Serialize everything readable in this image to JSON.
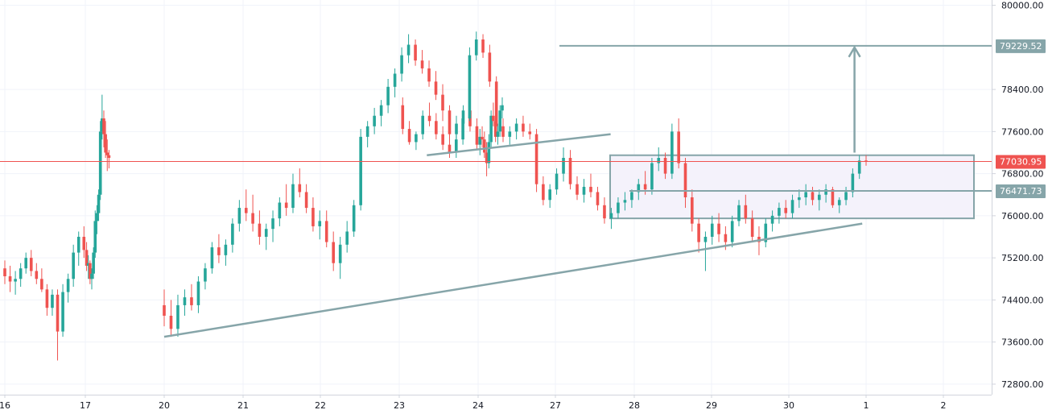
{
  "chart_data": {
    "type": "candlestick",
    "y_range": [
      72600,
      80100
    ],
    "x_labels": [
      "16",
      "17",
      "20",
      "21",
      "22",
      "23",
      "24",
      "27",
      "28",
      "29",
      "30",
      "1",
      "2"
    ],
    "y_ticks": [
      "80000.00",
      "78400.00",
      "77600.00",
      "76800.00",
      "76000.00",
      "75200.00",
      "74400.00",
      "73600.00",
      "72800.00"
    ],
    "y_tick_values": [
      80000,
      78400,
      77600,
      76800,
      76000,
      75200,
      74400,
      73600,
      72800
    ],
    "grid": true,
    "colors": {
      "up": "#26a69a",
      "down": "#ef5350",
      "current_price": "#ef5350",
      "drawing": "#86a5a9",
      "box_fill": "#f4f2fb",
      "grid": "#f0f3fa",
      "axis_text": "#131722"
    },
    "current_price": {
      "value": 77030.95,
      "label": "77030.95"
    },
    "price_levels": [
      {
        "value": 79229.52,
        "label": "79229.52"
      },
      {
        "value": 76471.73,
        "label": "76471.73"
      }
    ],
    "range_box": {
      "top": 77150,
      "bottom": 75950
    },
    "candles": [
      [
        75000,
        75150,
        74700,
        74850
      ],
      [
        74850,
        75050,
        74550,
        74750
      ],
      [
        74750,
        74950,
        74500,
        74800
      ],
      [
        74800,
        75100,
        74650,
        75000
      ],
      [
        75000,
        75300,
        74900,
        75200
      ],
      [
        75200,
        75350,
        74850,
        74950
      ],
      [
        74950,
        75100,
        74700,
        74800
      ],
      [
        74800,
        75000,
        74550,
        74600
      ],
      [
        74600,
        74700,
        74100,
        74250
      ],
      [
        74250,
        74600,
        74100,
        74500
      ],
      [
        74500,
        74600,
        73250,
        73800
      ],
      [
        73800,
        74700,
        73700,
        74550
      ],
      [
        74550,
        74900,
        74350,
        74800
      ],
      [
        74800,
        75450,
        74650,
        75300
      ],
      [
        75300,
        75700,
        75050,
        75600
      ],
      [
        75600,
        75800,
        75200,
        75350
      ],
      [
        75350,
        75500,
        74950,
        75050
      ],
      [
        75050,
        75250,
        74800,
        75100
      ],
      [
        75100,
        75150,
        74700,
        74800
      ],
      [
        74800,
        75000,
        74600,
        74900
      ],
      [
        74900,
        75400,
        74800,
        75300
      ],
      [
        75300,
        76100,
        75200,
        75900
      ],
      [
        75900,
        76200,
        75650,
        76050
      ],
      [
        76050,
        76500,
        75900,
        76400
      ],
      [
        76400,
        77800,
        76300,
        77600
      ],
      [
        77600,
        78300,
        77450,
        77850
      ],
      [
        77850,
        78000,
        77300,
        77550
      ],
      [
        77550,
        77800,
        77100,
        77200
      ],
      [
        77200,
        77450,
        76850,
        77150
      ],
      [
        77150,
        77250,
        76900,
        77100
      ],
      [
        74300,
        74600,
        73900,
        74100
      ],
      [
        74100,
        74400,
        73700,
        73850
      ],
      [
        73850,
        74500,
        73700,
        74300
      ],
      [
        74300,
        74600,
        74100,
        74450
      ],
      [
        74450,
        74700,
        74200,
        74300
      ],
      [
        74300,
        74850,
        74150,
        74750
      ],
      [
        74750,
        75100,
        74600,
        75000
      ],
      [
        75000,
        75500,
        74900,
        75400
      ],
      [
        75400,
        75650,
        75100,
        75250
      ],
      [
        75250,
        75550,
        75050,
        75450
      ],
      [
        75450,
        75950,
        75300,
        75850
      ],
      [
        75850,
        76300,
        75700,
        76150
      ],
      [
        76150,
        76500,
        75900,
        76050
      ],
      [
        76050,
        76400,
        75700,
        75850
      ],
      [
        75850,
        76100,
        75450,
        75600
      ],
      [
        75600,
        75850,
        75350,
        75750
      ],
      [
        75750,
        76100,
        75500,
        75950
      ],
      [
        75950,
        76350,
        75800,
        76250
      ],
      [
        76250,
        76600,
        76000,
        76150
      ],
      [
        76150,
        76800,
        76050,
        76600
      ],
      [
        76600,
        76900,
        76350,
        76450
      ],
      [
        76450,
        76600,
        76050,
        76150
      ],
      [
        76150,
        76350,
        75700,
        75800
      ],
      [
        75800,
        76100,
        75550,
        75900
      ],
      [
        75900,
        76100,
        75400,
        75500
      ],
      [
        75500,
        75700,
        74950,
        75100
      ],
      [
        75100,
        75600,
        74800,
        75450
      ],
      [
        75450,
        75900,
        75300,
        75700
      ],
      [
        75700,
        76300,
        75600,
        76200
      ],
      [
        76200,
        77650,
        76100,
        77500
      ],
      [
        77500,
        77800,
        77300,
        77700
      ],
      [
        77700,
        78050,
        77550,
        77900
      ],
      [
        77900,
        78200,
        77700,
        78100
      ],
      [
        78100,
        78600,
        77950,
        78450
      ],
      [
        78450,
        78800,
        78250,
        78700
      ],
      [
        78700,
        79200,
        78550,
        79050
      ],
      [
        79050,
        79450,
        78900,
        79250
      ],
      [
        79250,
        79350,
        78850,
        78950
      ],
      [
        78950,
        79150,
        78700,
        78800
      ],
      [
        78800,
        78950,
        78450,
        78550
      ],
      [
        78550,
        78750,
        78200,
        78300
      ],
      [
        78300,
        78500,
        77800,
        78000
      ],
      [
        78000,
        78100,
        77400,
        77550
      ],
      [
        77550,
        77900,
        77350,
        77750
      ],
      [
        77750,
        78100,
        77600,
        78000
      ],
      [
        78000,
        78200,
        77600,
        77700
      ],
      [
        77700,
        77850,
        77250,
        77350
      ],
      [
        77350,
        77650,
        77150,
        77500
      ],
      [
        77500,
        77700,
        77300,
        77450
      ],
      [
        77450,
        77600,
        77100,
        77200
      ],
      [
        77200,
        77400,
        76750,
        77000
      ],
      [
        77000,
        77550,
        76900,
        77400
      ],
      [
        77400,
        78000,
        77300,
        77900
      ],
      [
        77900,
        78150,
        77700,
        77800
      ],
      [
        77800,
        77900,
        77400,
        77500
      ],
      [
        77500,
        77750,
        77350,
        77600
      ],
      [
        77600,
        78100,
        77500,
        78000
      ],
      [
        78000,
        78250,
        77850,
        78100
      ],
      [
        78100,
        78250,
        77550,
        77650
      ],
      [
        77650,
        77800,
        77350,
        77400
      ],
      [
        77400,
        77600,
        77250,
        77550
      ],
      [
        77550,
        78000,
        77450,
        77900
      ],
      [
        77900,
        78150,
        77700,
        77800
      ],
      [
        77800,
        77950,
        77450,
        77550
      ],
      [
        77550,
        77700,
        77250,
        77350
      ],
      [
        77350,
        77500,
        77100,
        77200
      ],
      [
        77200,
        77550,
        77100,
        77450
      ],
      [
        77450,
        78000,
        77350,
        77850
      ],
      [
        77850,
        79200,
        77800,
        79050
      ],
      [
        79050,
        79500,
        78950,
        79350
      ],
      [
        79350,
        79450,
        79000,
        79100
      ],
      [
        79100,
        79250,
        78450,
        78550
      ],
      [
        78550,
        78650,
        77600,
        77700
      ],
      [
        77700,
        77850,
        77400,
        77500
      ],
      [
        77500,
        77700,
        77350,
        77600
      ],
      [
        77600,
        77850,
        77450,
        77750
      ],
      [
        77750,
        77900,
        77500,
        77600
      ],
      [
        77600,
        77750,
        77450,
        77550
      ],
      [
        77550,
        77650,
        76450,
        76600
      ],
      [
        76600,
        76750,
        76200,
        76300
      ],
      [
        76300,
        76600,
        76150,
        76500
      ],
      [
        76500,
        76900,
        76400,
        76800
      ],
      [
        76800,
        77300,
        76650,
        77100
      ],
      [
        77100,
        77250,
        76500,
        76600
      ],
      [
        76600,
        76750,
        76300,
        76400
      ],
      [
        76400,
        76700,
        76250,
        76550
      ],
      [
        76550,
        76800,
        76350,
        76450
      ],
      [
        76450,
        76550,
        76100,
        76200
      ],
      [
        76200,
        76350,
        75850,
        75950
      ],
      [
        75950,
        76150,
        75750,
        76050
      ],
      [
        76050,
        76350,
        75950,
        76250
      ],
      [
        76250,
        76450,
        76100,
        76300
      ],
      [
        76300,
        76500,
        76150,
        76450
      ],
      [
        76450,
        76700,
        76300,
        76600
      ],
      [
        76600,
        76850,
        76400,
        76500
      ],
      [
        76500,
        77100,
        76400,
        77000
      ],
      [
        77000,
        77300,
        76850,
        77100
      ],
      [
        77100,
        77200,
        76700,
        76800
      ],
      [
        76800,
        77750,
        76700,
        77600
      ],
      [
        77600,
        77850,
        76900,
        77000
      ],
      [
        77000,
        77100,
        76150,
        76350
      ],
      [
        76350,
        76500,
        75700,
        75850
      ],
      [
        75850,
        75950,
        75300,
        75500
      ],
      [
        75500,
        75700,
        74950,
        75600
      ],
      [
        75600,
        76000,
        75450,
        75850
      ],
      [
        75850,
        76050,
        75500,
        75650
      ],
      [
        75650,
        75800,
        75350,
        75500
      ],
      [
        75500,
        76000,
        75400,
        75900
      ],
      [
        75900,
        76300,
        75800,
        76200
      ],
      [
        76200,
        76400,
        75850,
        75950
      ],
      [
        75950,
        76100,
        75500,
        75600
      ],
      [
        75600,
        75800,
        75250,
        75500
      ],
      [
        75500,
        75950,
        75400,
        75850
      ],
      [
        75850,
        76100,
        75700,
        76000
      ],
      [
        76000,
        76250,
        75850,
        76150
      ],
      [
        76150,
        76300,
        75950,
        76050
      ],
      [
        76050,
        76400,
        75950,
        76300
      ],
      [
        76300,
        76500,
        76150,
        76350
      ],
      [
        76350,
        76600,
        76200,
        76450
      ],
      [
        76450,
        76550,
        76200,
        76300
      ],
      [
        76300,
        76500,
        76100,
        76400
      ],
      [
        76400,
        76600,
        76250,
        76500
      ],
      [
        76500,
        76550,
        76150,
        76200
      ],
      [
        76200,
        76350,
        76050,
        76300
      ],
      [
        76300,
        76550,
        76200,
        76450
      ],
      [
        76450,
        76900,
        76350,
        76800
      ],
      [
        76800,
        77150,
        76700,
        77050
      ],
      [
        77050,
        77150,
        76950,
        77030.95
      ]
    ],
    "drawings": [
      {
        "type": "trendline",
        "from": [
          20.0,
          73700
        ],
        "to": [
          30.95,
          75850
        ]
      },
      {
        "type": "trendline",
        "from": [
          23.35,
          77150
        ],
        "to": [
          27.7,
          77550
        ]
      },
      {
        "type": "arrow",
        "from": [
          30.85,
          77200
        ],
        "to": [
          30.85,
          79200
        ]
      }
    ]
  }
}
